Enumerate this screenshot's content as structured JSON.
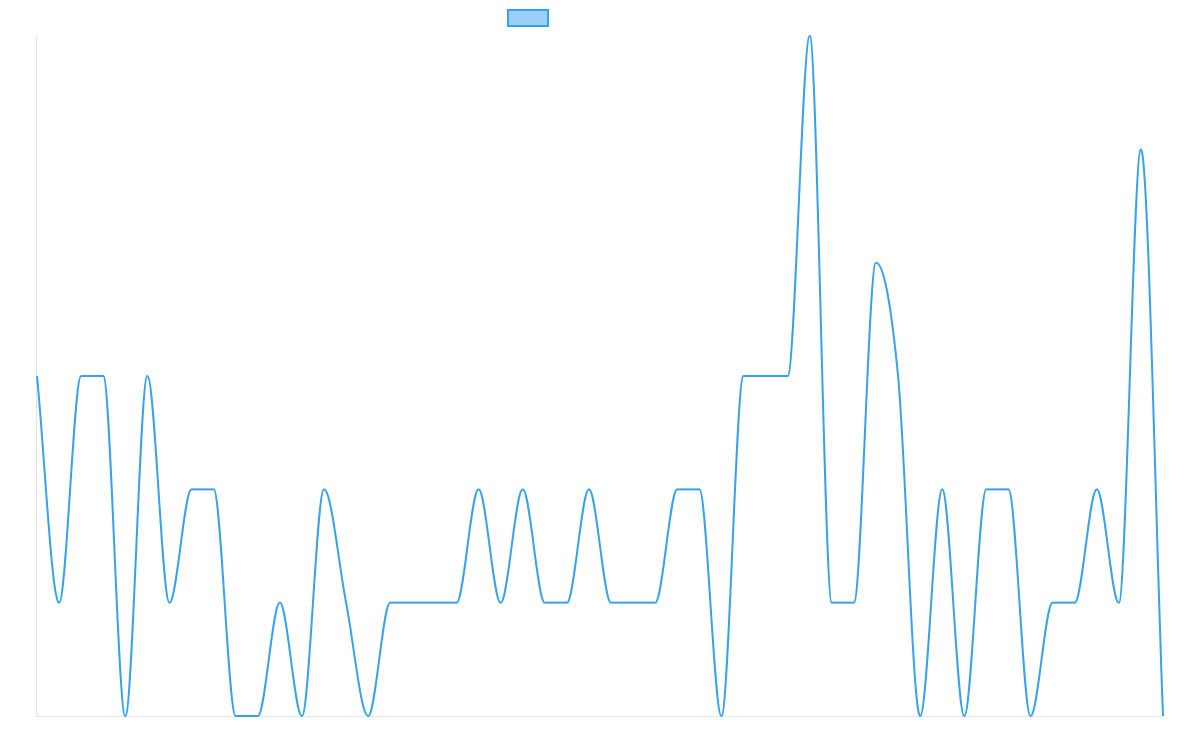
{
  "colors": {
    "line": "#36a2eb",
    "legend_fill": "#9ad0f5",
    "axis": "#e5e5e5"
  },
  "chart_data": {
    "type": "line",
    "title": "",
    "xlabel": "",
    "ylabel": "",
    "grid": false,
    "legend_position": "top-center",
    "ylim": [
      0,
      6
    ],
    "series": [
      {
        "values": [
          3,
          1,
          3,
          3,
          0,
          3,
          1,
          2,
          2,
          0,
          0,
          1,
          0,
          2,
          1,
          0,
          1,
          1,
          1,
          1,
          2,
          1,
          2,
          1,
          1,
          2,
          1,
          1,
          1,
          2,
          2,
          0,
          3,
          3,
          3,
          6,
          1,
          1,
          4,
          3,
          0,
          2,
          0,
          2,
          2,
          0,
          1,
          1,
          2,
          1,
          5,
          0
        ]
      }
    ]
  }
}
